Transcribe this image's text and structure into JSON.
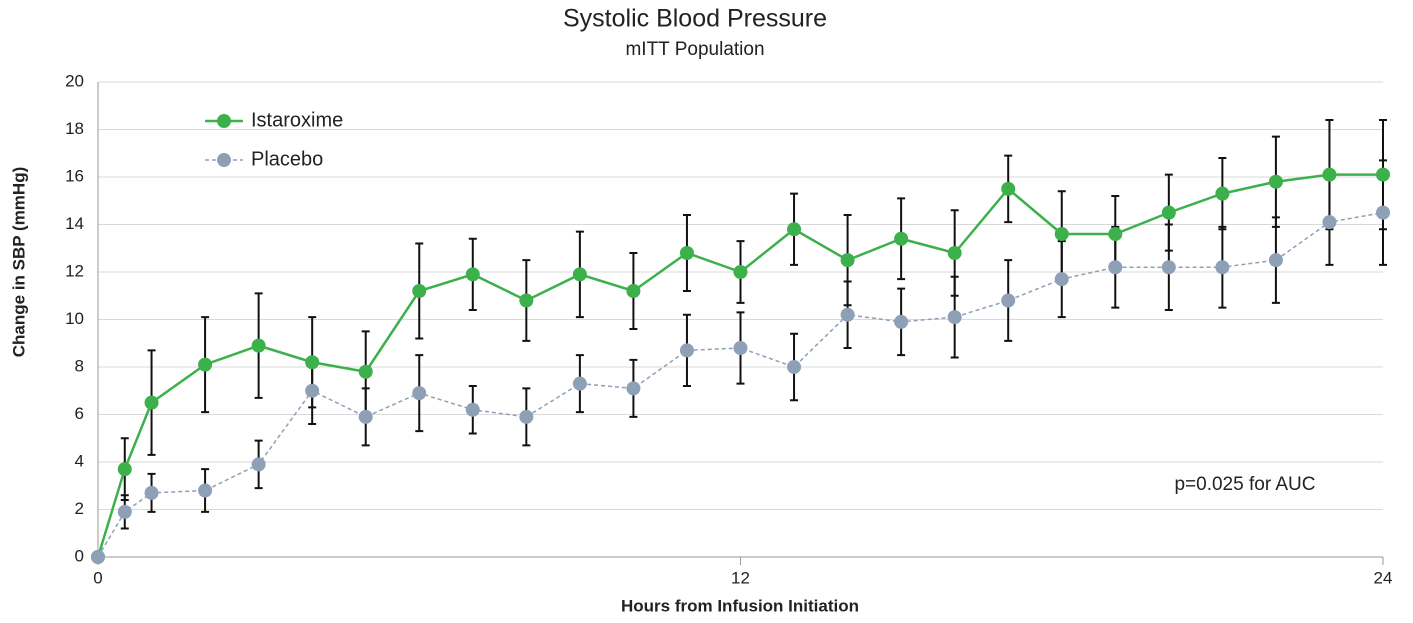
{
  "chart_data": {
    "type": "line",
    "title": "Systolic Blood Pressure",
    "subtitle": "mITT Population",
    "xlabel": "Hours from Infusion Initiation",
    "ylabel": "Change in SBP (mmHg)",
    "annotation": "p=0.025 for AUC",
    "x": [
      0,
      0.5,
      1,
      2,
      3,
      4,
      5,
      6,
      7,
      8,
      9,
      10,
      11,
      12,
      13,
      14,
      15,
      16,
      17,
      18,
      19,
      20,
      21,
      22,
      23,
      24
    ],
    "series": [
      {
        "name": "Istaroxime",
        "color": "#3cb04a",
        "dashed": false,
        "values": [
          0,
          3.7,
          6.5,
          8.1,
          8.9,
          8.2,
          7.8,
          11.2,
          11.9,
          10.8,
          11.9,
          11.2,
          12.8,
          12.0,
          13.8,
          12.5,
          13.4,
          12.8,
          15.5,
          13.6,
          13.6,
          14.5,
          15.3,
          15.8,
          16.1,
          16.1
        ],
        "errors": [
          0,
          1.3,
          2.2,
          2.0,
          2.2,
          1.9,
          1.7,
          2.0,
          1.5,
          1.7,
          1.8,
          1.6,
          1.6,
          1.3,
          1.5,
          1.9,
          1.7,
          1.8,
          1.4,
          1.8,
          1.6,
          1.6,
          1.5,
          1.9,
          2.3,
          2.3
        ]
      },
      {
        "name": "Placebo",
        "color": "#8ea0b5",
        "dashed": true,
        "values": [
          0,
          1.9,
          2.7,
          2.8,
          3.9,
          7.0,
          5.9,
          6.9,
          6.2,
          5.9,
          7.3,
          7.1,
          8.7,
          8.8,
          8.0,
          10.2,
          9.9,
          10.1,
          10.8,
          11.7,
          12.2,
          12.2,
          12.2,
          12.5,
          14.1,
          14.5
        ],
        "errors": [
          0,
          0.7,
          0.8,
          0.9,
          1.0,
          1.4,
          1.2,
          1.6,
          1.0,
          1.2,
          1.2,
          1.2,
          1.5,
          1.5,
          1.4,
          1.4,
          1.4,
          1.7,
          1.7,
          1.6,
          1.7,
          1.8,
          1.7,
          1.8,
          1.8,
          2.2
        ]
      }
    ],
    "xlim": [
      0,
      24
    ],
    "xticks": [
      0,
      12,
      24
    ],
    "ylim": [
      0,
      20
    ],
    "yticks": [
      0,
      2,
      4,
      6,
      8,
      10,
      12,
      14,
      16,
      18,
      20
    ],
    "grid": true,
    "legend": "upper left"
  }
}
